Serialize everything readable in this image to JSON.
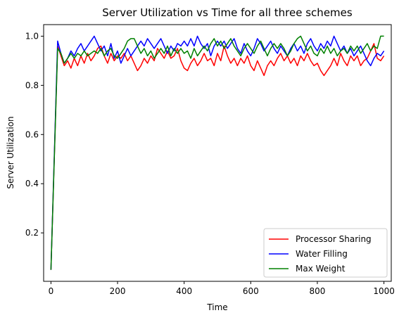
{
  "chart_data": {
    "type": "line",
    "title": "Server Utilization vs Time for all three schemes",
    "xlabel": "Time",
    "ylabel": "Server Utilization",
    "xlim": [
      -22,
      1022
    ],
    "ylim": [
      0.003,
      1.047
    ],
    "xticks": [
      0,
      200,
      400,
      600,
      800,
      1000
    ],
    "yticks": [
      0.2,
      0.4,
      0.6,
      0.8,
      1.0
    ],
    "xtick_labels": [
      "0",
      "200",
      "400",
      "600",
      "800",
      "1000"
    ],
    "ytick_labels": [
      "0.2",
      "0.4",
      "0.6",
      "0.8",
      "1.0"
    ],
    "grid": false,
    "legend_position": "bottom-right",
    "series": [
      {
        "name": "Processor Sharing",
        "color": "#ff0000",
        "points": [
          [
            0,
            0.05
          ],
          [
            20,
            0.96
          ],
          [
            30,
            0.92
          ],
          [
            40,
            0.88
          ],
          [
            50,
            0.9
          ],
          [
            60,
            0.87
          ],
          [
            70,
            0.91
          ],
          [
            80,
            0.88
          ],
          [
            90,
            0.92
          ],
          [
            100,
            0.89
          ],
          [
            110,
            0.93
          ],
          [
            120,
            0.9
          ],
          [
            130,
            0.92
          ],
          [
            140,
            0.95
          ],
          [
            150,
            0.96
          ],
          [
            160,
            0.92
          ],
          [
            170,
            0.89
          ],
          [
            180,
            0.93
          ],
          [
            190,
            0.9
          ],
          [
            200,
            0.92
          ],
          [
            210,
            0.91
          ],
          [
            220,
            0.93
          ],
          [
            230,
            0.9
          ],
          [
            240,
            0.92
          ],
          [
            250,
            0.89
          ],
          [
            260,
            0.86
          ],
          [
            270,
            0.88
          ],
          [
            280,
            0.91
          ],
          [
            290,
            0.89
          ],
          [
            300,
            0.92
          ],
          [
            310,
            0.9
          ],
          [
            320,
            0.95
          ],
          [
            330,
            0.93
          ],
          [
            340,
            0.91
          ],
          [
            350,
            0.94
          ],
          [
            360,
            0.91
          ],
          [
            370,
            0.92
          ],
          [
            380,
            0.95
          ],
          [
            390,
            0.9
          ],
          [
            400,
            0.87
          ],
          [
            410,
            0.86
          ],
          [
            420,
            0.89
          ],
          [
            430,
            0.91
          ],
          [
            440,
            0.88
          ],
          [
            450,
            0.9
          ],
          [
            460,
            0.93
          ],
          [
            470,
            0.9
          ],
          [
            480,
            0.91
          ],
          [
            490,
            0.88
          ],
          [
            500,
            0.93
          ],
          [
            510,
            0.9
          ],
          [
            520,
            0.96
          ],
          [
            530,
            0.92
          ],
          [
            540,
            0.89
          ],
          [
            550,
            0.91
          ],
          [
            560,
            0.88
          ],
          [
            570,
            0.91
          ],
          [
            580,
            0.89
          ],
          [
            590,
            0.92
          ],
          [
            600,
            0.88
          ],
          [
            610,
            0.86
          ],
          [
            620,
            0.9
          ],
          [
            630,
            0.87
          ],
          [
            640,
            0.84
          ],
          [
            650,
            0.88
          ],
          [
            660,
            0.9
          ],
          [
            670,
            0.88
          ],
          [
            680,
            0.91
          ],
          [
            690,
            0.93
          ],
          [
            700,
            0.9
          ],
          [
            710,
            0.92
          ],
          [
            720,
            0.89
          ],
          [
            730,
            0.91
          ],
          [
            740,
            0.88
          ],
          [
            750,
            0.92
          ],
          [
            760,
            0.9
          ],
          [
            770,
            0.93
          ],
          [
            780,
            0.9
          ],
          [
            790,
            0.88
          ],
          [
            800,
            0.89
          ],
          [
            810,
            0.86
          ],
          [
            820,
            0.84
          ],
          [
            830,
            0.86
          ],
          [
            840,
            0.88
          ],
          [
            850,
            0.91
          ],
          [
            860,
            0.88
          ],
          [
            870,
            0.93
          ],
          [
            880,
            0.9
          ],
          [
            890,
            0.88
          ],
          [
            900,
            0.92
          ],
          [
            910,
            0.9
          ],
          [
            920,
            0.92
          ],
          [
            930,
            0.88
          ],
          [
            940,
            0.9
          ],
          [
            950,
            0.91
          ],
          [
            960,
            0.94
          ],
          [
            970,
            0.97
          ],
          [
            980,
            0.91
          ],
          [
            990,
            0.9
          ],
          [
            1000,
            0.92
          ]
        ]
      },
      {
        "name": "Water Filling",
        "color": "#0000ff",
        "points": [
          [
            0,
            0.05
          ],
          [
            20,
            0.98
          ],
          [
            30,
            0.93
          ],
          [
            40,
            0.89
          ],
          [
            50,
            0.91
          ],
          [
            60,
            0.94
          ],
          [
            70,
            0.92
          ],
          [
            80,
            0.95
          ],
          [
            90,
            0.97
          ],
          [
            100,
            0.94
          ],
          [
            110,
            0.96
          ],
          [
            120,
            0.98
          ],
          [
            130,
            1.0
          ],
          [
            140,
            0.97
          ],
          [
            150,
            0.94
          ],
          [
            160,
            0.96
          ],
          [
            170,
            0.92
          ],
          [
            180,
            0.97
          ],
          [
            190,
            0.91
          ],
          [
            200,
            0.94
          ],
          [
            210,
            0.89
          ],
          [
            220,
            0.92
          ],
          [
            230,
            0.95
          ],
          [
            240,
            0.92
          ],
          [
            250,
            0.94
          ],
          [
            260,
            0.96
          ],
          [
            270,
            0.98
          ],
          [
            280,
            0.96
          ],
          [
            290,
            0.99
          ],
          [
            300,
            0.97
          ],
          [
            310,
            0.95
          ],
          [
            320,
            0.97
          ],
          [
            330,
            0.99
          ],
          [
            340,
            0.96
          ],
          [
            350,
            0.93
          ],
          [
            360,
            0.96
          ],
          [
            370,
            0.94
          ],
          [
            380,
            0.97
          ],
          [
            390,
            0.96
          ],
          [
            400,
            0.98
          ],
          [
            410,
            0.96
          ],
          [
            420,
            0.99
          ],
          [
            430,
            0.96
          ],
          [
            440,
            1.0
          ],
          [
            450,
            0.97
          ],
          [
            460,
            0.95
          ],
          [
            470,
            0.97
          ],
          [
            480,
            0.92
          ],
          [
            490,
            0.96
          ],
          [
            500,
            0.98
          ],
          [
            510,
            0.96
          ],
          [
            520,
            0.98
          ],
          [
            530,
            0.95
          ],
          [
            540,
            0.97
          ],
          [
            550,
            0.99
          ],
          [
            560,
            0.95
          ],
          [
            570,
            0.93
          ],
          [
            580,
            0.97
          ],
          [
            590,
            0.94
          ],
          [
            600,
            0.92
          ],
          [
            610,
            0.95
          ],
          [
            620,
            0.99
          ],
          [
            630,
            0.97
          ],
          [
            640,
            0.94
          ],
          [
            650,
            0.96
          ],
          [
            660,
            0.98
          ],
          [
            670,
            0.95
          ],
          [
            680,
            0.93
          ],
          [
            690,
            0.96
          ],
          [
            700,
            0.94
          ],
          [
            710,
            0.92
          ],
          [
            720,
            0.95
          ],
          [
            730,
            0.97
          ],
          [
            740,
            0.94
          ],
          [
            750,
            0.96
          ],
          [
            760,
            0.93
          ],
          [
            770,
            0.97
          ],
          [
            780,
            0.99
          ],
          [
            790,
            0.96
          ],
          [
            800,
            0.94
          ],
          [
            810,
            0.97
          ],
          [
            820,
            0.95
          ],
          [
            830,
            0.98
          ],
          [
            840,
            0.96
          ],
          [
            850,
            1.0
          ],
          [
            860,
            0.97
          ],
          [
            870,
            0.94
          ],
          [
            880,
            0.96
          ],
          [
            890,
            0.93
          ],
          [
            900,
            0.95
          ],
          [
            910,
            0.92
          ],
          [
            920,
            0.94
          ],
          [
            930,
            0.96
          ],
          [
            940,
            0.93
          ],
          [
            950,
            0.9
          ],
          [
            960,
            0.88
          ],
          [
            970,
            0.91
          ],
          [
            980,
            0.93
          ],
          [
            990,
            0.92
          ],
          [
            1000,
            0.94
          ]
        ]
      },
      {
        "name": "Max Weight",
        "color": "#008000",
        "points": [
          [
            0,
            0.05
          ],
          [
            20,
            0.95
          ],
          [
            30,
            0.93
          ],
          [
            40,
            0.89
          ],
          [
            50,
            0.91
          ],
          [
            60,
            0.93
          ],
          [
            70,
            0.91
          ],
          [
            80,
            0.93
          ],
          [
            90,
            0.92
          ],
          [
            100,
            0.94
          ],
          [
            110,
            0.92
          ],
          [
            120,
            0.93
          ],
          [
            130,
            0.94
          ],
          [
            140,
            0.93
          ],
          [
            150,
            0.95
          ],
          [
            160,
            0.92
          ],
          [
            170,
            0.94
          ],
          [
            180,
            0.95
          ],
          [
            190,
            0.92
          ],
          [
            200,
            0.91
          ],
          [
            210,
            0.93
          ],
          [
            220,
            0.95
          ],
          [
            230,
            0.98
          ],
          [
            240,
            0.99
          ],
          [
            250,
            0.99
          ],
          [
            260,
            0.96
          ],
          [
            270,
            0.93
          ],
          [
            280,
            0.95
          ],
          [
            290,
            0.92
          ],
          [
            300,
            0.94
          ],
          [
            310,
            0.91
          ],
          [
            320,
            0.93
          ],
          [
            330,
            0.95
          ],
          [
            340,
            0.93
          ],
          [
            350,
            0.96
          ],
          [
            360,
            0.92
          ],
          [
            370,
            0.95
          ],
          [
            380,
            0.93
          ],
          [
            390,
            0.95
          ],
          [
            400,
            0.93
          ],
          [
            410,
            0.94
          ],
          [
            420,
            0.91
          ],
          [
            430,
            0.95
          ],
          [
            440,
            0.92
          ],
          [
            450,
            0.94
          ],
          [
            460,
            0.96
          ],
          [
            470,
            0.94
          ],
          [
            480,
            0.97
          ],
          [
            490,
            0.99
          ],
          [
            500,
            0.96
          ],
          [
            510,
            0.98
          ],
          [
            520,
            0.95
          ],
          [
            530,
            0.97
          ],
          [
            540,
            0.99
          ],
          [
            550,
            0.96
          ],
          [
            560,
            0.94
          ],
          [
            570,
            0.92
          ],
          [
            580,
            0.95
          ],
          [
            590,
            0.97
          ],
          [
            600,
            0.95
          ],
          [
            610,
            0.93
          ],
          [
            620,
            0.96
          ],
          [
            630,
            0.98
          ],
          [
            640,
            0.95
          ],
          [
            650,
            0.92
          ],
          [
            660,
            0.95
          ],
          [
            670,
            0.97
          ],
          [
            680,
            0.95
          ],
          [
            690,
            0.97
          ],
          [
            700,
            0.95
          ],
          [
            710,
            0.92
          ],
          [
            720,
            0.94
          ],
          [
            730,
            0.97
          ],
          [
            740,
            0.99
          ],
          [
            750,
            1.0
          ],
          [
            760,
            0.97
          ],
          [
            770,
            0.94
          ],
          [
            780,
            0.96
          ],
          [
            790,
            0.93
          ],
          [
            800,
            0.92
          ],
          [
            810,
            0.95
          ],
          [
            820,
            0.93
          ],
          [
            830,
            0.96
          ],
          [
            840,
            0.93
          ],
          [
            850,
            0.95
          ],
          [
            860,
            0.92
          ],
          [
            870,
            0.94
          ],
          [
            880,
            0.95
          ],
          [
            890,
            0.93
          ],
          [
            900,
            0.96
          ],
          [
            910,
            0.94
          ],
          [
            920,
            0.96
          ],
          [
            930,
            0.93
          ],
          [
            940,
            0.95
          ],
          [
            950,
            0.97
          ],
          [
            960,
            0.94
          ],
          [
            970,
            0.96
          ],
          [
            980,
            0.95
          ],
          [
            990,
            1.0
          ],
          [
            1000,
            1.0
          ]
        ]
      }
    ]
  }
}
